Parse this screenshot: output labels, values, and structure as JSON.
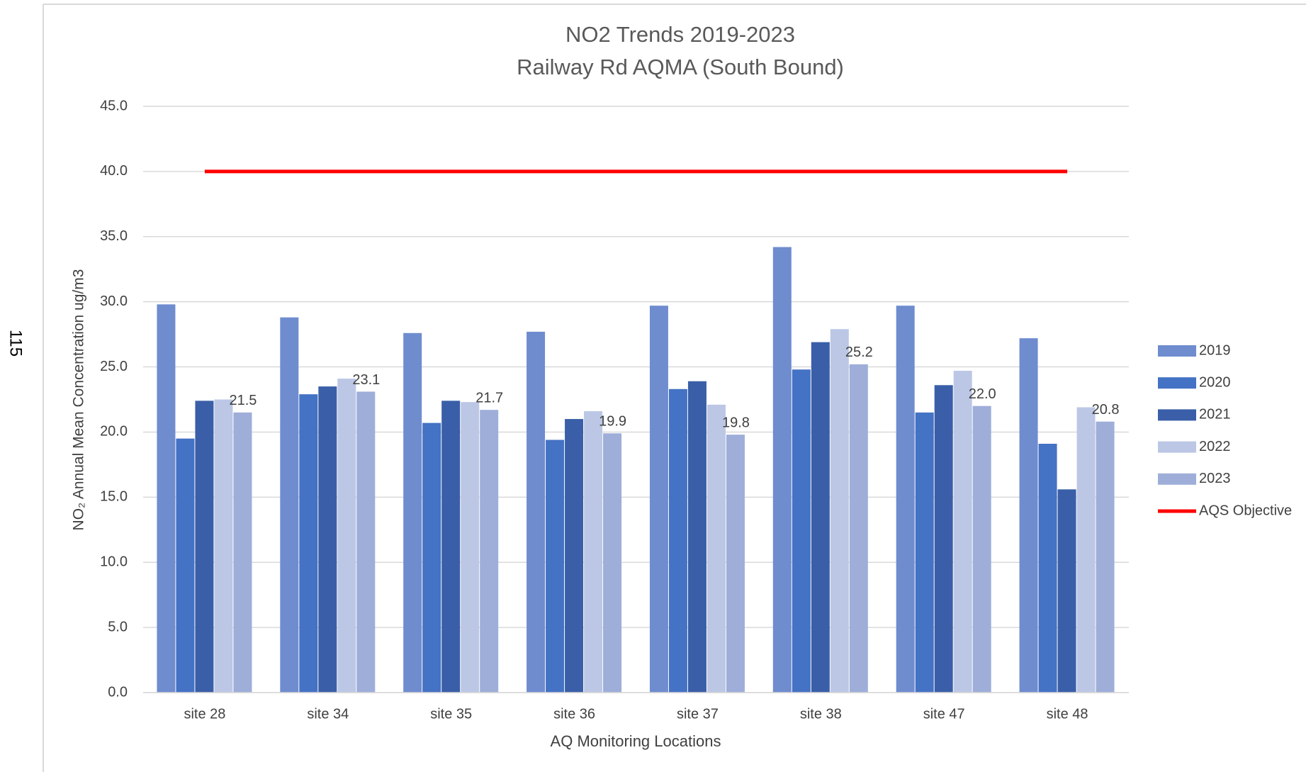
{
  "page_number": "115",
  "chart_data": {
    "type": "bar",
    "title": "NO2 Trends 2019-2023",
    "subtitle": "Railway Rd AQMA (South Bound)",
    "x_label": "AQ Monitoring Locations",
    "y_label": "NO₂ Annual Mean Concentration ug/m3",
    "categories": [
      "site 28",
      "site 34",
      "site 35",
      "site 36",
      "site 37",
      "site 38",
      "site 47",
      "site 48"
    ],
    "series": [
      {
        "name": "2019",
        "color": "#6f8ccf",
        "values": [
          29.8,
          28.8,
          27.6,
          27.7,
          29.7,
          34.2,
          29.7,
          27.2
        ]
      },
      {
        "name": "2020",
        "color": "#4472c4",
        "values": [
          19.5,
          22.9,
          20.7,
          19.4,
          23.3,
          24.8,
          21.5,
          19.1
        ]
      },
      {
        "name": "2021",
        "color": "#3a5fa8",
        "values": [
          22.4,
          23.5,
          22.4,
          21.0,
          23.9,
          26.9,
          23.6,
          15.6
        ]
      },
      {
        "name": "2022",
        "color": "#bcc7e6",
        "values": [
          22.5,
          24.1,
          22.3,
          21.6,
          22.1,
          27.9,
          24.7,
          21.9
        ]
      },
      {
        "name": "2023",
        "color": "#9eaed9",
        "values": [
          21.5,
          23.1,
          21.7,
          19.9,
          19.8,
          25.2,
          22.0,
          20.8
        ],
        "value_labels": [
          "21.5",
          "23.1",
          "21.7",
          "19.9",
          "19.8",
          "25.2",
          "22.0",
          "20.8"
        ]
      },
      {
        "name": "AQS Objective",
        "color": "#ff0000",
        "type": "line",
        "values": [
          40,
          40,
          40,
          40,
          40,
          40,
          40,
          40
        ]
      }
    ],
    "ylim": [
      0,
      45
    ],
    "yticks": [
      {
        "value": 0,
        "label": "0.0"
      },
      {
        "value": 5,
        "label": "5.0"
      },
      {
        "value": 10,
        "label": "10.0"
      },
      {
        "value": 15,
        "label": "15.0"
      },
      {
        "value": 20,
        "label": "20.0"
      },
      {
        "value": 25,
        "label": "25.0"
      },
      {
        "value": 30,
        "label": "30.0"
      },
      {
        "value": 35,
        "label": "35.0"
      },
      {
        "value": 40,
        "label": "40.0"
      },
      {
        "value": 45,
        "label": "45.0"
      }
    ],
    "grid": true,
    "legend": "right"
  }
}
